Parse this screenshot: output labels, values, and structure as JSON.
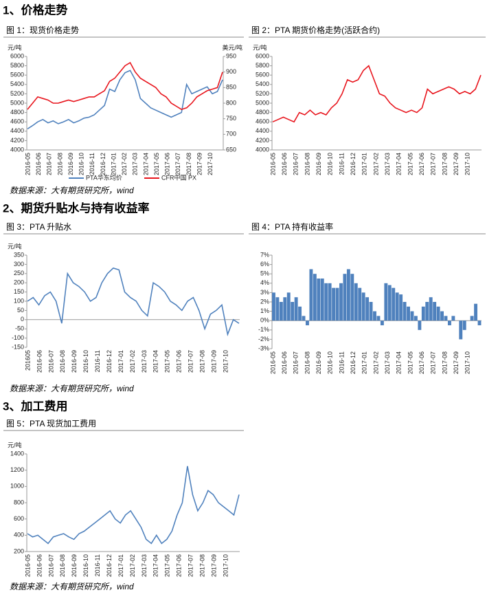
{
  "headings": [
    "1、价格走势",
    "2、期货升贴水与持有收益率",
    "3、加工费用"
  ],
  "sources": [
    "数据来源：大有期货研究所，wind",
    "数据来源：大有期货研究所，wind",
    "数据来源：大有期货研究所，wind"
  ],
  "chart_data": [
    {
      "type": "line",
      "caption": "图 1：现货价格走势",
      "y_unit": "元/吨",
      "y2_unit": "美元/吨",
      "legend": true,
      "xticks": [
        "2016-05",
        "2016-06",
        "2016-07",
        "2016-08",
        "2016-09",
        "2016-10",
        "2016-11",
        "2016-12",
        "2017-01",
        "2017-02",
        "2017-03",
        "2017-04",
        "2017-05",
        "2017-06",
        "2017-07",
        "2017-08",
        "2017-09",
        "2017-10"
      ],
      "ylim": [
        4000,
        6000
      ],
      "yticks": [
        4000,
        4200,
        4400,
        4600,
        4800,
        5000,
        5200,
        5400,
        5600,
        5800,
        6000
      ],
      "y2lim": [
        650,
        950
      ],
      "y2ticks": [
        650,
        700,
        750,
        800,
        850,
        900,
        950
      ],
      "series": [
        {
          "name": "PTA华东均价",
          "color": "#4f81bd",
          "values": [
            4450,
            4520,
            4600,
            4650,
            4580,
            4620,
            4560,
            4600,
            4650,
            4580,
            4620,
            4680,
            4700,
            4750,
            4850,
            4950,
            5300,
            5250,
            5500,
            5650,
            5700,
            5500,
            5100,
            5000,
            4900,
            4850,
            4800,
            4750,
            4700,
            4750,
            4800,
            5400,
            5200,
            5250,
            5300,
            5350,
            5200,
            5250,
            5500
          ]
        },
        {
          "name": "CFR中国 PX",
          "color": "#e8141c",
          "axis": "y2",
          "values": [
            780,
            800,
            820,
            815,
            810,
            800,
            800,
            805,
            810,
            805,
            810,
            815,
            820,
            820,
            830,
            840,
            870,
            880,
            900,
            920,
            930,
            900,
            880,
            870,
            860,
            850,
            830,
            820,
            800,
            790,
            780,
            785,
            800,
            820,
            830,
            840,
            845,
            850,
            900
          ]
        }
      ]
    },
    {
      "type": "line",
      "caption": "图 2：PTA 期货价格走势(活跃合约)",
      "y_unit": "元/吨",
      "xticks": [
        "2016-05",
        "2016-06",
        "2016-07",
        "2016-08",
        "2016-09",
        "2016-10",
        "2016-11",
        "2016-12",
        "2017-01",
        "2017-02",
        "2017-03",
        "2017-04",
        "2017-05",
        "2017-06",
        "2017-07",
        "2017-08",
        "2017-09",
        "2017-10"
      ],
      "ylim": [
        4000,
        6000
      ],
      "yticks": [
        4000,
        4200,
        4400,
        4600,
        4800,
        5000,
        5200,
        5400,
        5600,
        5800,
        6000
      ],
      "series": [
        {
          "color": "#e8141c",
          "values": [
            4600,
            4650,
            4700,
            4650,
            4600,
            4800,
            4750,
            4850,
            4750,
            4800,
            4750,
            4900,
            5000,
            5200,
            5500,
            5450,
            5500,
            5700,
            5800,
            5500,
            5200,
            5150,
            5000,
            4900,
            4850,
            4800,
            4850,
            4800,
            4900,
            5300,
            5200,
            5250,
            5300,
            5350,
            5300,
            5200,
            5250,
            5200,
            5300,
            5600
          ]
        }
      ]
    },
    {
      "type": "line",
      "caption": "图 3：PTA 升贴水",
      "y_unit": "元/吨",
      "xticks": [
        "201605",
        "2016-06",
        "2016-07",
        "2016-08",
        "2016-09",
        "2016-10",
        "2016-11",
        "2016-12",
        "2017-01",
        "2017-02",
        "2017-03",
        "2017-04",
        "2017-05",
        "2017-06",
        "2017-07",
        "2017-08",
        "2017-09",
        "2017-10"
      ],
      "ylim": [
        -150,
        350
      ],
      "yticks": [
        -150,
        -100,
        -50,
        0,
        50,
        100,
        150,
        200,
        250,
        300,
        350
      ],
      "series": [
        {
          "color": "#4f81bd",
          "values": [
            100,
            120,
            80,
            130,
            150,
            100,
            -20,
            250,
            200,
            180,
            150,
            100,
            120,
            200,
            250,
            280,
            270,
            150,
            120,
            100,
            50,
            20,
            200,
            180,
            150,
            100,
            80,
            50,
            100,
            120,
            50,
            -50,
            30,
            50,
            80,
            -80,
            0,
            -20
          ]
        }
      ]
    },
    {
      "type": "bar",
      "caption": "图 4：PTA 持有收益率",
      "xticks": [
        "2016-05",
        "2016-06",
        "2016-07",
        "2016-08",
        "2016-09",
        "2016-10",
        "2016-11",
        "2016-12",
        "2017-01",
        "2017-02",
        "2017-03",
        "2017-04",
        "2017-05",
        "2017-06",
        "2017-07",
        "2017-08",
        "2017-09",
        "2017-10"
      ],
      "ylim": [
        -3,
        7
      ],
      "yticks": [
        {
          "value": -3,
          "label": "-3%"
        },
        {
          "value": -2,
          "label": "-2%"
        },
        {
          "value": -1,
          "label": "-1%"
        },
        {
          "value": 0,
          "label": "0%"
        },
        {
          "value": 1,
          "label": "1%"
        },
        {
          "value": 2,
          "label": "2%"
        },
        {
          "value": 3,
          "label": "3%"
        },
        {
          "value": 4,
          "label": "4%"
        },
        {
          "value": 5,
          "label": "5%"
        },
        {
          "value": 6,
          "label": "6%"
        },
        {
          "value": 7,
          "label": "7%"
        }
      ],
      "series": [
        {
          "color": "#4f81bd",
          "values": [
            3,
            2.5,
            2,
            2.5,
            3,
            2,
            2.5,
            1.5,
            0.5,
            -0.5,
            5.5,
            5,
            4.5,
            4.5,
            4,
            4,
            3.5,
            3.5,
            4,
            5,
            5.5,
            5,
            4,
            3.5,
            3,
            2.5,
            2,
            1,
            0.5,
            -0.5,
            4,
            3.8,
            3.5,
            3,
            2.8,
            2,
            1.5,
            1,
            0.5,
            -1,
            1.5,
            2,
            2.5,
            2,
            1.5,
            1,
            0.5,
            -0.5,
            0.5,
            0,
            -2,
            -1,
            0,
            0.5,
            1.8,
            -0.5
          ]
        }
      ]
    },
    {
      "type": "line",
      "caption": "图 5：PTA 现货加工费用",
      "y_unit": "元/吨",
      "xticks": [
        "2016-05",
        "2016-06",
        "2016-07",
        "2016-08",
        "2016-09",
        "2016-10",
        "2016-11",
        "2016-12",
        "2017-01",
        "2017-02",
        "2017-03",
        "2017-04",
        "2017-05",
        "2017-06",
        "2017-07",
        "2017-08",
        "2017-09",
        "2017-10"
      ],
      "ylim": [
        200,
        1400
      ],
      "yticks": [
        200,
        400,
        600,
        800,
        1000,
        1200,
        1400
      ],
      "series": [
        {
          "color": "#4f81bd",
          "values": [
            420,
            380,
            400,
            350,
            300,
            380,
            400,
            420,
            380,
            350,
            420,
            450,
            500,
            550,
            600,
            650,
            700,
            600,
            550,
            650,
            700,
            600,
            500,
            350,
            300,
            400,
            300,
            350,
            450,
            650,
            800,
            1250,
            900,
            700,
            800,
            950,
            900,
            800,
            750,
            700,
            650,
            900
          ]
        }
      ]
    }
  ]
}
